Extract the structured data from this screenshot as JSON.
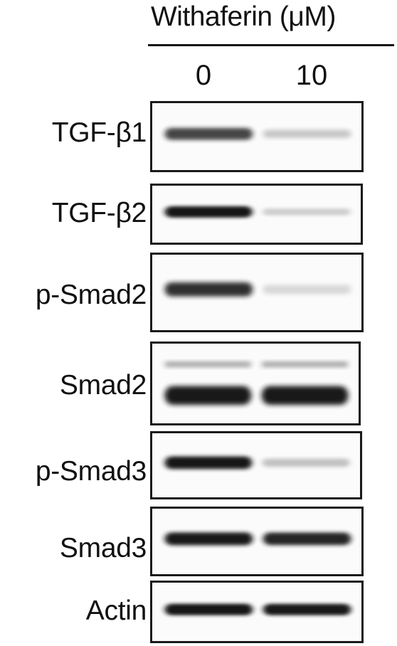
{
  "header": {
    "treatment_label": "Withaferin (μM)",
    "lanes": [
      "0",
      "10"
    ]
  },
  "blots": [
    {
      "label": "TGF-β1",
      "lane_intensity": [
        0.75,
        0.15
      ],
      "secondary_band": false
    },
    {
      "label": "TGF-β2",
      "lane_intensity": [
        0.98,
        0.12
      ],
      "secondary_band": false
    },
    {
      "label": "p-Smad2",
      "lane_intensity": [
        0.85,
        0.08
      ],
      "secondary_band": false
    },
    {
      "label": "Smad2",
      "lane_intensity": [
        0.95,
        0.95
      ],
      "secondary_band": true
    },
    {
      "label": "p-Smad3",
      "lane_intensity": [
        0.97,
        0.18
      ],
      "secondary_band": false
    },
    {
      "label": "Smad3",
      "lane_intensity": [
        0.95,
        0.9
      ],
      "secondary_band": false
    },
    {
      "label": "Actin",
      "lane_intensity": [
        0.97,
        0.95
      ],
      "secondary_band": false
    }
  ]
}
